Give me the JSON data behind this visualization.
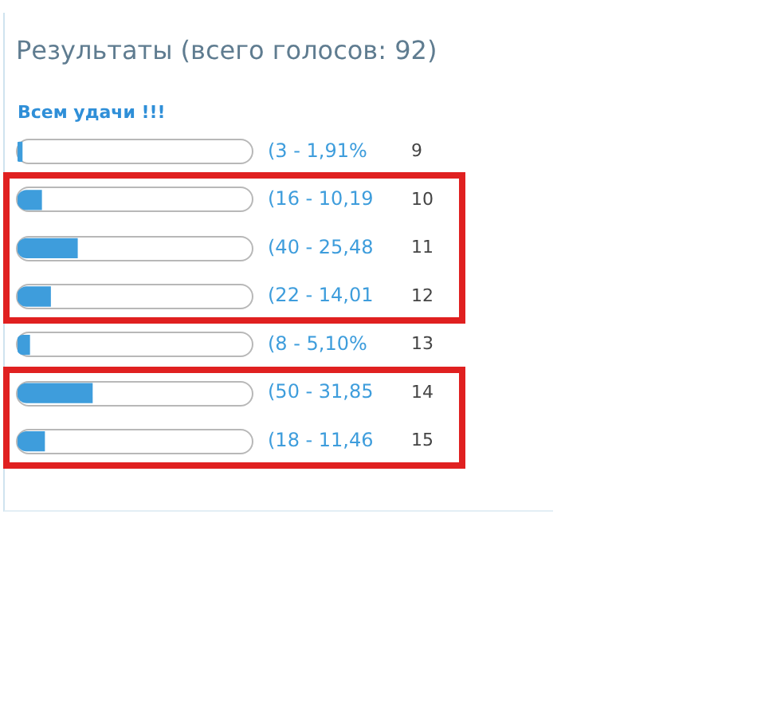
{
  "chart_data": {
    "type": "bar",
    "orientation": "horizontal",
    "title": "Результаты (всего голосов: 92)",
    "subtitle": "Всем удачи !!!",
    "categories": [
      "9",
      "10",
      "11",
      "12",
      "13",
      "14",
      "15"
    ],
    "values": [
      3,
      16,
      40,
      22,
      8,
      50,
      18
    ],
    "value_labels": [
      "(3 - 1,91%",
      "(16 - 10,19",
      "(40 - 25,48",
      "(22 - 14,01",
      "(8 - 5,10%",
      "(50 - 31,85",
      "(18 - 11,46"
    ],
    "color": "#3e9ddc",
    "tick_labels": "y",
    "legend": false
  }
}
